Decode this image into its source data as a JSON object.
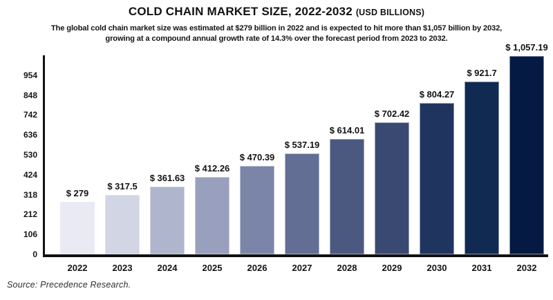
{
  "header": {
    "title": "COLD CHAIN MARKET SIZE, 2022-2032",
    "unit_note": "(USD BILLIONS)",
    "subtitle_line1": "The global cold chain market size was estimated at $279 billion in 2022 and is expected to hit more than $1,057 billion by 2032,",
    "subtitle_line2": "growing at a compound annual growth rate of 14.3% over the forecast period from 2023 to 2032."
  },
  "chart_data": {
    "type": "bar",
    "title": "COLD CHAIN MARKET SIZE, 2022-2032 (USD BILLIONS)",
    "xlabel": "",
    "ylabel": "",
    "categories": [
      "2022",
      "2023",
      "2024",
      "2025",
      "2026",
      "2027",
      "2028",
      "2029",
      "2030",
      "2031",
      "2032"
    ],
    "values": [
      279,
      317.5,
      361.63,
      412.26,
      470.39,
      537.19,
      614.01,
      702.42,
      804.27,
      921.7,
      1057.19
    ],
    "value_labels": [
      "$ 279",
      "$ 317.5",
      "$ 361.63",
      "$ 412.26",
      "$ 470.39",
      "$ 537.19",
      "$ 614.01",
      "$ 702.42",
      "$ 804.27",
      "$ 921.7",
      "$ 1,057.19"
    ],
    "bar_colors": [
      "#e9eaf3",
      "#d2d6e4",
      "#aeb5cc",
      "#98a0bd",
      "#7b85a8",
      "#636e95",
      "#4b5880",
      "#3a4971",
      "#1f3560",
      "#102a52",
      "#051a42"
    ],
    "axis_color": "#111111",
    "ylim": [
      0,
      1060
    ],
    "yticks": [
      0,
      106,
      212,
      318,
      424,
      530,
      636,
      742,
      848,
      954
    ],
    "grid": false,
    "legend": false
  },
  "footer": {
    "source": "Source: Precedence Research."
  }
}
